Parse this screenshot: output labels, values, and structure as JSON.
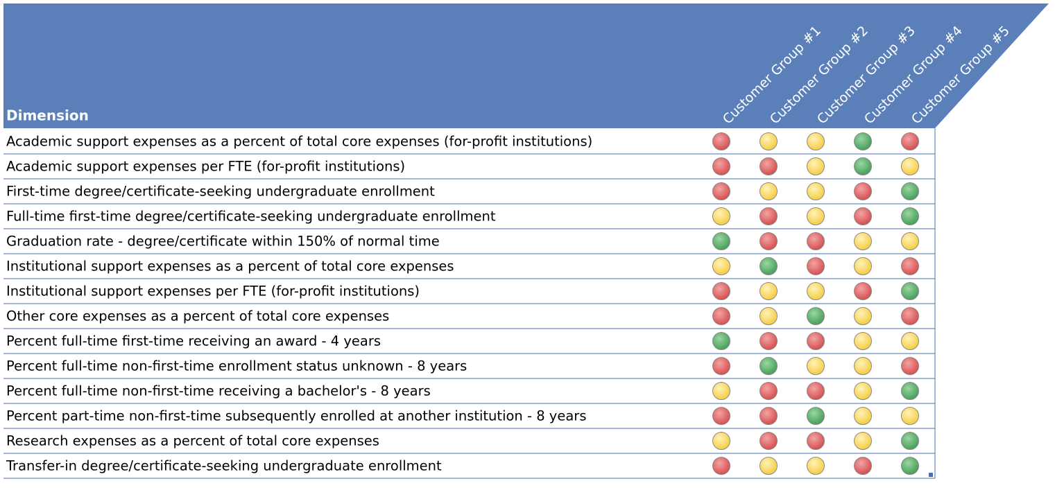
{
  "table": {
    "header": "Dimension",
    "columns": [
      "Customer Group #1",
      "Customer Group #2",
      "Customer Group #3",
      "Customer Group #4",
      "Customer Group #5"
    ],
    "rows": [
      {
        "label": "Academic support expenses as a percent of total core expenses (for-profit institutions)",
        "status": [
          "red",
          "yellow",
          "yellow",
          "green",
          "red"
        ]
      },
      {
        "label": "Academic support expenses per FTE (for-profit institutions)",
        "status": [
          "red",
          "red",
          "yellow",
          "green",
          "yellow"
        ]
      },
      {
        "label": "First-time degree/certificate-seeking undergraduate enrollment",
        "status": [
          "red",
          "yellow",
          "yellow",
          "red",
          "green"
        ]
      },
      {
        "label": "Full-time first-time degree/certificate-seeking undergraduate enrollment",
        "status": [
          "yellow",
          "red",
          "yellow",
          "red",
          "green"
        ]
      },
      {
        "label": "Graduation rate - degree/certificate within 150% of normal time",
        "status": [
          "green",
          "red",
          "red",
          "yellow",
          "yellow"
        ]
      },
      {
        "label": "Institutional support expenses as a percent of total core expenses",
        "status": [
          "yellow",
          "green",
          "red",
          "yellow",
          "red"
        ]
      },
      {
        "label": "Institutional support expenses per FTE (for-profit institutions)",
        "status": [
          "red",
          "yellow",
          "yellow",
          "red",
          "green"
        ]
      },
      {
        "label": "Other core expenses as a percent of total core expenses",
        "status": [
          "red",
          "yellow",
          "green",
          "yellow",
          "red"
        ]
      },
      {
        "label": "Percent full-time first-time receiving an award - 4 years",
        "status": [
          "green",
          "red",
          "red",
          "yellow",
          "yellow"
        ]
      },
      {
        "label": "Percent full-time non-first-time enrollment status unknown - 8 years",
        "status": [
          "red",
          "green",
          "yellow",
          "yellow",
          "red"
        ]
      },
      {
        "label": "Percent full-time non-first-time receiving a bachelor's - 8 years",
        "status": [
          "yellow",
          "red",
          "red",
          "yellow",
          "green"
        ]
      },
      {
        "label": "Percent part-time non-first-time subsequently enrolled at another institution - 8 years",
        "status": [
          "red",
          "red",
          "green",
          "yellow",
          "yellow"
        ]
      },
      {
        "label": "Research expenses as a percent of total core expenses",
        "status": [
          "yellow",
          "red",
          "red",
          "yellow",
          "green"
        ]
      },
      {
        "label": "Transfer-in degree/certificate-seeking undergraduate enrollment",
        "status": [
          "red",
          "yellow",
          "yellow",
          "red",
          "green"
        ]
      }
    ]
  }
}
